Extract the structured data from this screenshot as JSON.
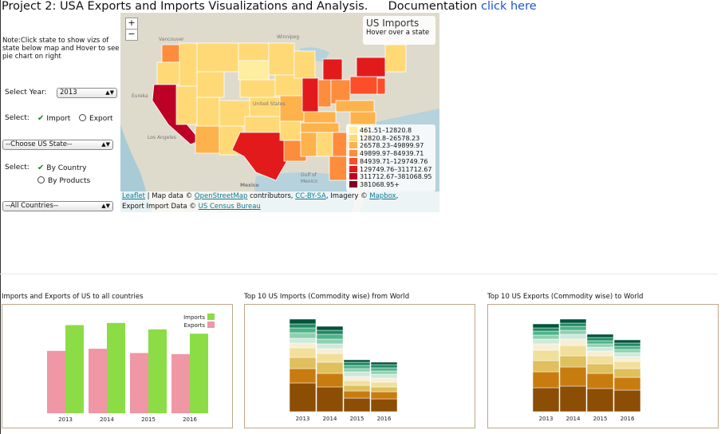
{
  "header": {
    "title": "Project 2: USA Exports and Imports Visualizations and Analysis.",
    "doc_label": "Documentation",
    "doc_link": "click here"
  },
  "sidebar": {
    "note": "Note:Click state to show vizs of state below map and Hover to see pie chart on right",
    "year_label": "Select Year:",
    "year_value": "2013",
    "select_label": "Select:",
    "import_label": "Import",
    "export_label": "Export",
    "state_value": "--Choose US State--",
    "by_label": "Select:",
    "by_country": "By Country",
    "by_products": "By Products",
    "country_value": "--All Countries--"
  },
  "map": {
    "zoom_in": "+",
    "zoom_out": "−",
    "info_title": "US Imports",
    "info_text": "Hover over a state",
    "place_labels": [
      "Vancouver",
      "Winnipeg",
      "Eureka",
      "United States",
      "Los Angeles",
      "Mexico",
      "Gulf of Mexico"
    ],
    "legend": [
      {
        "label": "461.51–12820.8",
        "color": "#ffeda0"
      },
      {
        "label": "12820.8–26578.23",
        "color": "#fed976"
      },
      {
        "label": "26578.23–49899.97",
        "color": "#feb24c"
      },
      {
        "label": "49899.97–84939.71",
        "color": "#fd8d3c"
      },
      {
        "label": "84939.71–129749.76",
        "color": "#fc4e2a"
      },
      {
        "label": "129749.76–311712.67",
        "color": "#e31a1c"
      },
      {
        "label": "311712.67–381068.95",
        "color": "#bd0026"
      },
      {
        "label": "381068.95+",
        "color": "#800026"
      }
    ],
    "attribution": {
      "leaflet": "Leaflet",
      "sep1": " | Map data © ",
      "osm": "OpenStreetMap",
      "sep2": " contributors, ",
      "ccbysa": "CC-BY-SA",
      "sep3": ", Imagery © ",
      "mapbox": "Mapbox",
      "sep4": ",",
      "line2": "Export Import Data © ",
      "census": "US Census Bureau"
    }
  },
  "chart_data": [
    {
      "type": "bar",
      "title": "Imports and Exports of US to all countries",
      "categories": [
        "2013",
        "2014",
        "2015",
        "2016"
      ],
      "series": [
        {
          "name": "Exports",
          "color": "#ef97a5",
          "values": [
            2.9,
            3.0,
            2.8,
            2.75
          ]
        },
        {
          "name": "Imports",
          "color": "#8cdc46",
          "values": [
            4.1,
            4.2,
            3.9,
            3.7
          ]
        }
      ],
      "legend": [
        "Imports",
        "Exports"
      ],
      "ylim": [
        0,
        4.6
      ]
    },
    {
      "type": "bar",
      "title": "Top 10 US Imports (Commodity wise) from World",
      "categories": [
        "2013",
        "2014",
        "2015",
        "2016"
      ],
      "stack_colors": [
        "#8c4d05",
        "#c87c10",
        "#dfbf5e",
        "#f1df9c",
        "#f6efd6",
        "#cde9dc",
        "#8ed0b0",
        "#4fb38a",
        "#1f8a62",
        "#00533b"
      ],
      "series_values": [
        [
          36,
          31,
          17,
          16
        ],
        [
          18,
          17,
          9,
          9
        ],
        [
          14,
          14,
          7,
          6
        ],
        [
          12,
          11,
          6,
          6
        ],
        [
          6,
          6,
          5,
          5
        ],
        [
          6,
          6,
          6,
          5
        ],
        [
          7,
          6,
          4,
          4
        ],
        [
          6,
          6,
          4,
          4
        ],
        [
          5,
          5,
          4,
          4
        ],
        [
          6,
          5,
          3,
          3
        ]
      ]
    },
    {
      "type": "bar",
      "title": "Top 10 US Exports (Commodity wise) to World",
      "categories": [
        "2013",
        "2014",
        "2015",
        "2016"
      ],
      "stack_colors": [
        "#8c4d05",
        "#c87c10",
        "#dfbf5e",
        "#f1df9c",
        "#f6efd6",
        "#cde9dc",
        "#8ed0b0",
        "#4fb38a",
        "#1f8a62",
        "#00533b"
      ],
      "series_values": [
        [
          30,
          32,
          29,
          27
        ],
        [
          20,
          24,
          19,
          16
        ],
        [
          14,
          14,
          12,
          11
        ],
        [
          13,
          13,
          10,
          9
        ],
        [
          8,
          8,
          6,
          6
        ],
        [
          6,
          6,
          5,
          5
        ],
        [
          5,
          5,
          4,
          4
        ],
        [
          5,
          5,
          4,
          4
        ],
        [
          4,
          4,
          4,
          4
        ],
        [
          5,
          5,
          4,
          4
        ]
      ]
    }
  ]
}
